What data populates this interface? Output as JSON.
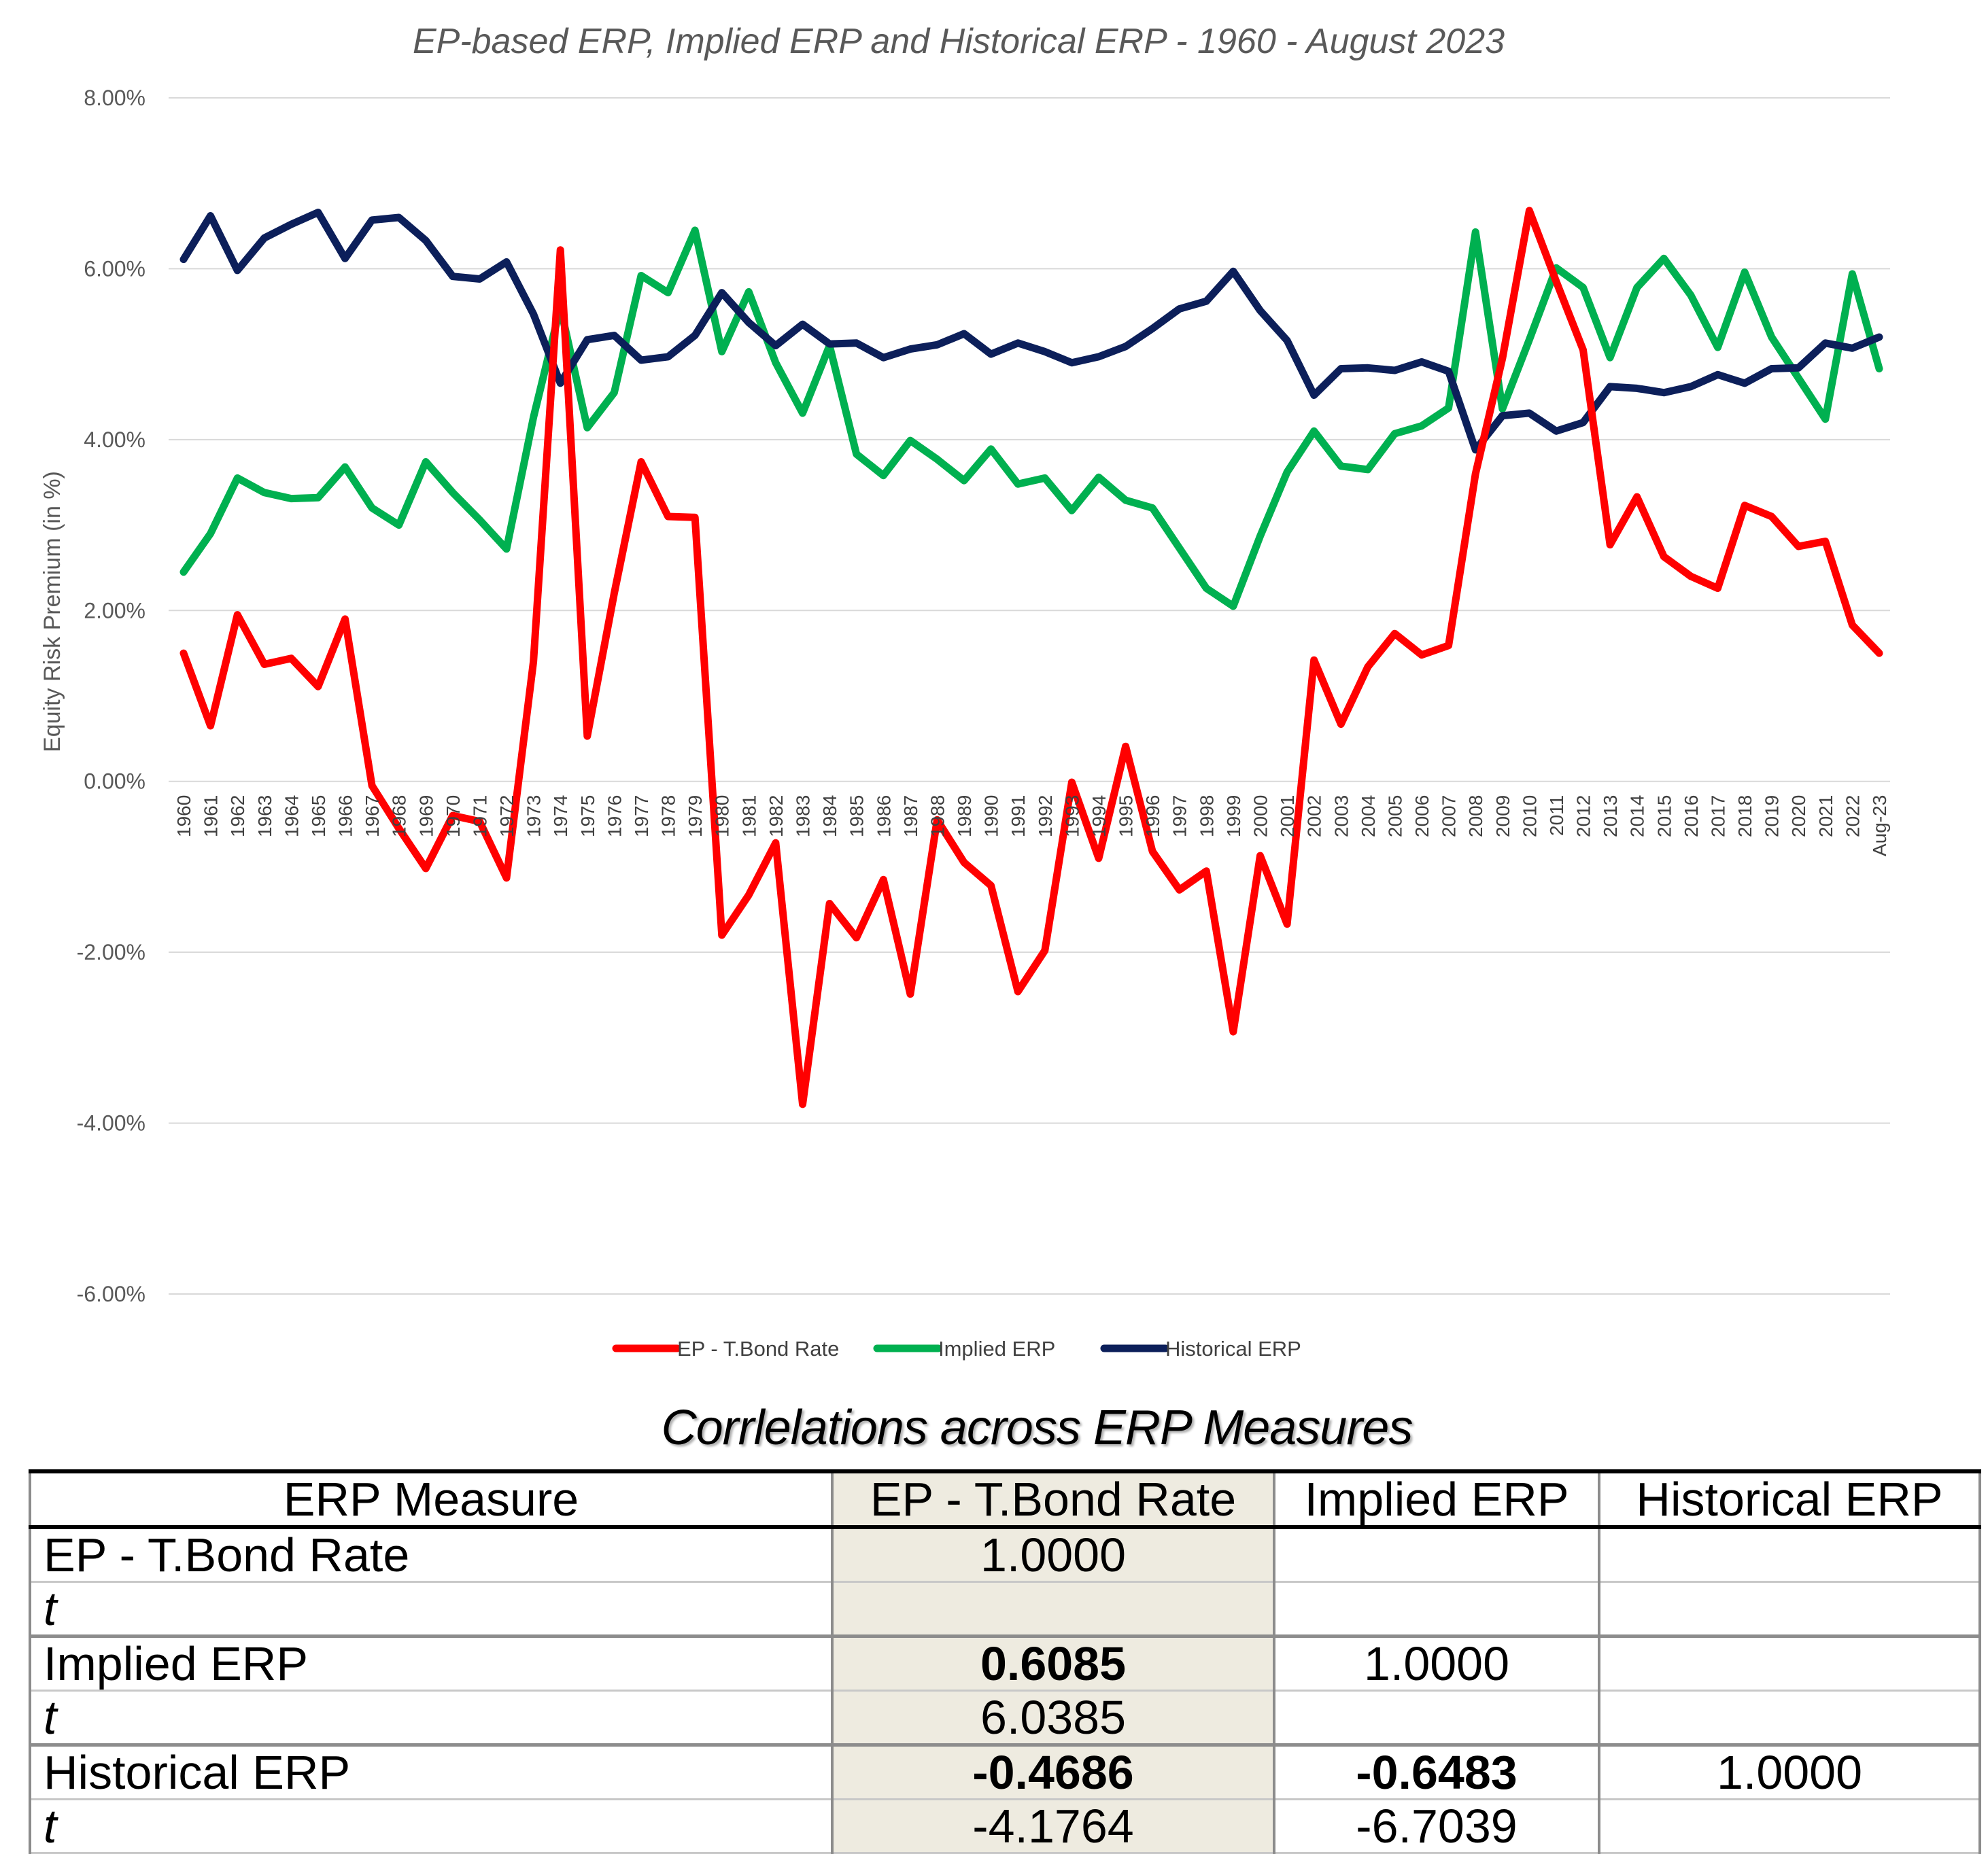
{
  "chart_data": {
    "type": "line",
    "title": "EP-based ERP, Implied ERP and Historical ERP - 1960 - August 2023",
    "ylabel": "Equity Risk Premium (in %)",
    "xlabel": "",
    "ylim": [
      -0.06,
      0.08
    ],
    "yticks": [
      "8.00%",
      "6.00%",
      "4.00%",
      "2.00%",
      "0.00%",
      "-2.00%",
      "-4.00%",
      "-6.00%"
    ],
    "ytick_values": [
      0.08,
      0.06,
      0.04,
      0.02,
      0.0,
      -0.02,
      -0.04,
      -0.06
    ],
    "grid": true,
    "legend": "bottom",
    "categories": [
      "1960",
      "1961",
      "1962",
      "1963",
      "1964",
      "1965",
      "1966",
      "1967",
      "1968",
      "1969",
      "1970",
      "1971",
      "1972",
      "1973",
      "1974",
      "1975",
      "1976",
      "1977",
      "1978",
      "1979",
      "1980",
      "1981",
      "1982",
      "1983",
      "1984",
      "1985",
      "1986",
      "1987",
      "1988",
      "1989",
      "1990",
      "1991",
      "1992",
      "1993",
      "1994",
      "1995",
      "1996",
      "1997",
      "1998",
      "1999",
      "2000",
      "2001",
      "2002",
      "2003",
      "2004",
      "2005",
      "2006",
      "2007",
      "2008",
      "2009",
      "2010",
      "2011",
      "2012",
      "2013",
      "2014",
      "2015",
      "2016",
      "2017",
      "2018",
      "2019",
      "2020",
      "2021",
      "2022",
      "Aug-23"
    ],
    "series": [
      {
        "name": "EP - T.Bond Rate",
        "color": "#ff0000",
        "values": [
          0.015,
          0.0065,
          0.0195,
          0.0137,
          0.0144,
          0.0111,
          0.019,
          -0.0005,
          -0.0055,
          -0.0102,
          -0.004,
          -0.0047,
          -0.0113,
          0.014,
          0.0622,
          0.0053,
          0.022,
          0.0374,
          0.031,
          0.0309,
          -0.018,
          -0.0133,
          -0.0072,
          -0.0378,
          -0.0143,
          -0.0183,
          -0.0115,
          -0.0249,
          -0.0045,
          -0.0095,
          -0.0122,
          -0.0246,
          -0.0198,
          -0.0001,
          -0.009,
          0.0041,
          -0.0082,
          -0.0127,
          -0.0105,
          -0.0293,
          -0.0087,
          -0.0167,
          0.0142,
          0.0067,
          0.0134,
          0.0173,
          0.0148,
          0.0159,
          0.036,
          0.0495,
          0.0668,
          0.0585,
          0.0505,
          0.0277,
          0.0333,
          0.0263,
          0.024,
          0.0226,
          0.0323,
          0.031,
          0.0275,
          0.0281,
          0.0183,
          0.015
        ]
      },
      {
        "name": "Implied ERP",
        "color": "#00b050",
        "values": [
          0.0245,
          0.029,
          0.0355,
          0.0338,
          0.0331,
          0.0332,
          0.0368,
          0.032,
          0.03,
          0.0374,
          0.0338,
          0.0306,
          0.0272,
          0.0426,
          0.0555,
          0.0414,
          0.0455,
          0.0592,
          0.0572,
          0.0645,
          0.0503,
          0.0573,
          0.049,
          0.0431,
          0.051,
          0.0383,
          0.0358,
          0.0399,
          0.0377,
          0.0352,
          0.0389,
          0.0348,
          0.0355,
          0.0317,
          0.0356,
          0.0329,
          0.032,
          0.0273,
          0.0226,
          0.0205,
          0.0287,
          0.0362,
          0.041,
          0.0369,
          0.0365,
          0.0407,
          0.0416,
          0.0437,
          0.0643,
          0.0436,
          0.0517,
          0.0601,
          0.0578,
          0.0496,
          0.0578,
          0.0612,
          0.0569,
          0.0508,
          0.0596,
          0.052,
          0.0472,
          0.0424,
          0.0594,
          0.0483
        ]
      },
      {
        "name": "Historical ERP",
        "color": "#0c1f5a",
        "values": [
          0.0611,
          0.0662,
          0.0598,
          0.0636,
          0.0652,
          0.0666,
          0.0612,
          0.0657,
          0.066,
          0.0633,
          0.0591,
          0.0588,
          0.0608,
          0.0547,
          0.0466,
          0.0517,
          0.0522,
          0.0493,
          0.0497,
          0.0522,
          0.0572,
          0.0537,
          0.051,
          0.0535,
          0.0512,
          0.0513,
          0.0496,
          0.0506,
          0.0511,
          0.0524,
          0.05,
          0.0513,
          0.0503,
          0.049,
          0.0497,
          0.0509,
          0.053,
          0.0553,
          0.0562,
          0.0597,
          0.0551,
          0.0516,
          0.0452,
          0.0483,
          0.0484,
          0.0481,
          0.0491,
          0.048,
          0.0388,
          0.0428,
          0.0431,
          0.041,
          0.042,
          0.0462,
          0.046,
          0.0455,
          0.0462,
          0.0476,
          0.0466,
          0.0483,
          0.0484,
          0.0513,
          0.0507,
          0.052
        ]
      }
    ]
  },
  "table": {
    "title": "Corrlelations across ERP Measures",
    "headers": [
      "ERP Measure",
      "EP - T.Bond Rate",
      "Implied ERP",
      "Historical ERP"
    ],
    "rows": [
      {
        "label": "EP - T.Bond Rate",
        "cells": [
          "1.0000",
          "",
          ""
        ]
      },
      {
        "label": "t",
        "cells": [
          "",
          "",
          ""
        ]
      },
      {
        "label": "Implied ERP",
        "cells": [
          "0.6085",
          "1.0000",
          ""
        ]
      },
      {
        "label": "t",
        "cells": [
          "6.0385",
          "",
          ""
        ]
      },
      {
        "label": "Historical ERP",
        "cells": [
          "-0.4686",
          "-0.6483",
          "1.0000"
        ]
      },
      {
        "label": "t",
        "cells": [
          "-4.1764",
          "-6.7039",
          ""
        ]
      }
    ]
  }
}
